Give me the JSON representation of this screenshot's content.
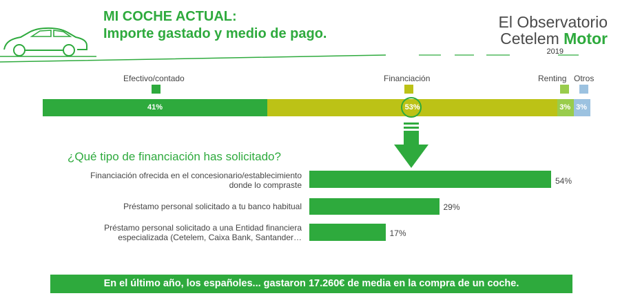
{
  "header": {
    "title_line1": "MI COCHE ACTUAL:",
    "title_line2": "Importe gastado y medio de pago.",
    "brand_line1": "El Observatorio",
    "brand_line2_a": "Cetelem ",
    "brand_line2_b": "Motor",
    "brand_year": "2019",
    "icons": [
      "car-outline-icon"
    ]
  },
  "chart_data": [
    {
      "type": "bar",
      "stacked": true,
      "orientation": "horizontal",
      "title": "",
      "legend_placement": "top",
      "series": [
        {
          "name": "Efectivo/contado",
          "value": 41,
          "label": "41%",
          "color": "#2eaa3d"
        },
        {
          "name": "Financiación",
          "value": 53,
          "label": "53%",
          "color": "#bcc216"
        },
        {
          "name": "Renting",
          "value": 3,
          "label": "3%",
          "color": "#99cc4c"
        },
        {
          "name": "Otros",
          "value": 3,
          "label": "3%",
          "color": "#9cc2e0"
        }
      ],
      "highlighted_series": "Financiación"
    },
    {
      "type": "bar",
      "orientation": "horizontal",
      "title": "¿Qué tipo de financiación has solicitado?",
      "categories": [
        "Financiación ofrecida en el concesionario/establecimiento donde lo compraste",
        "Préstamo personal solicitado a tu banco habitual",
        "Préstamo personal solicitado a una Entidad financiera especializada (Cetelem, Caixa Bank, Santander…"
      ],
      "label_lines": [
        [
          "Financiación ofrecida en el concesionario/establecimiento",
          "donde lo compraste"
        ],
        [
          "Préstamo personal solicitado a tu banco habitual"
        ],
        [
          "Préstamo personal solicitado a una Entidad financiera",
          "especializada (Cetelem, Caixa Bank, Santander…"
        ]
      ],
      "values": [
        54,
        29,
        17
      ],
      "value_labels": [
        "54%",
        "29%",
        "17%"
      ],
      "color": "#2eaa3d"
    }
  ],
  "footer": {
    "text": "En el último año, los españoles... gastaron 17.260€ de media en la compra de un coche."
  },
  "colors": {
    "accent": "#2eaa3d",
    "financiacion": "#bcc216",
    "renting": "#99cc4c",
    "otros": "#9cc2e0"
  }
}
